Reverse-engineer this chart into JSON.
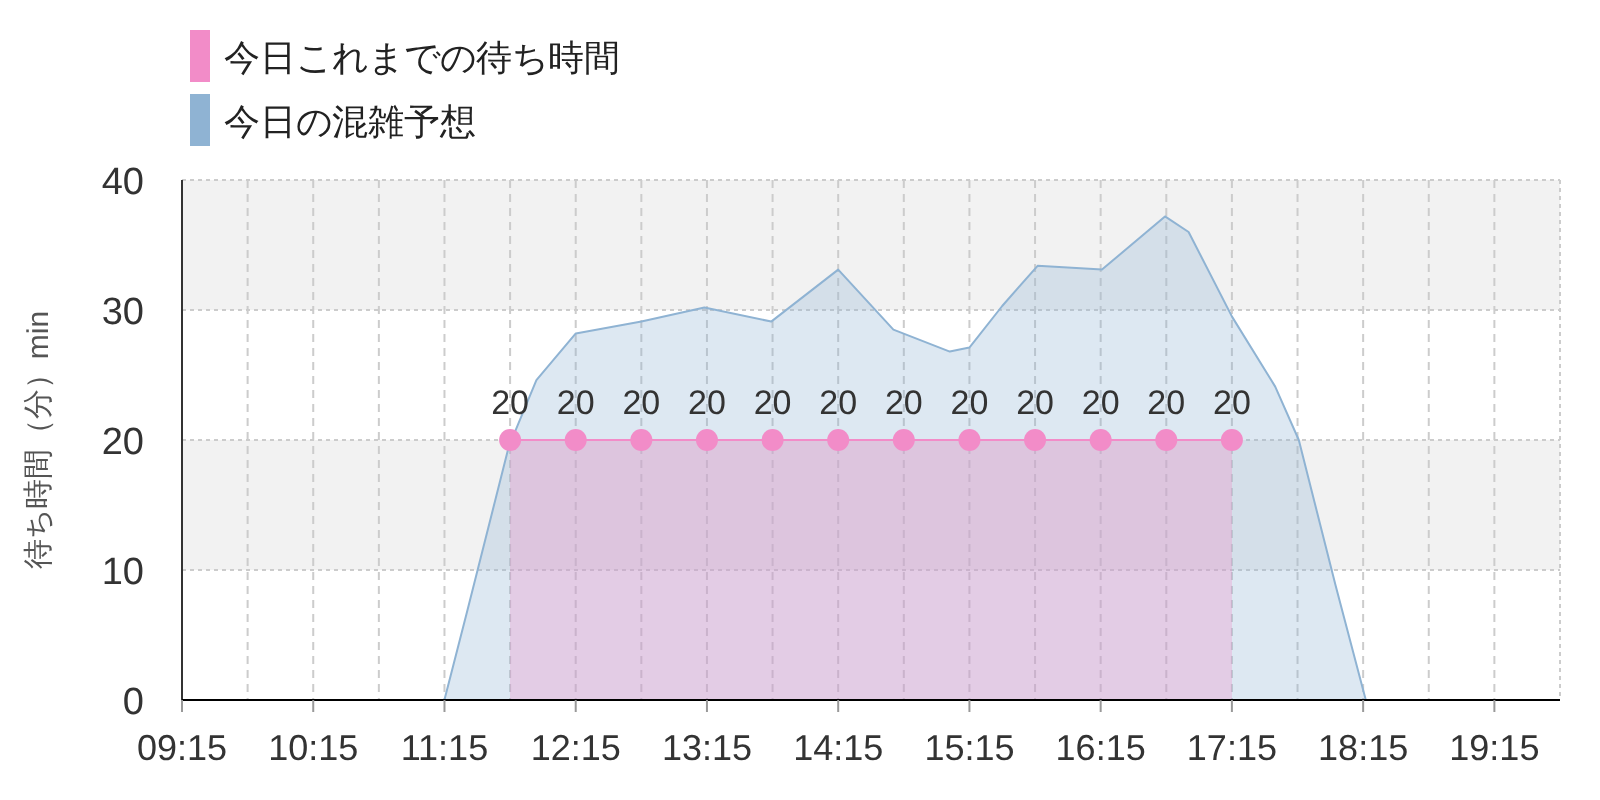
{
  "chart_data": {
    "type": "area",
    "ylabel": "待ち時間（分）min",
    "xlim": [
      9.25,
      19.75
    ],
    "xticks": [
      {
        "value": 9.25,
        "label": "09:15"
      },
      {
        "value": 9.75,
        "label": null
      },
      {
        "value": 10.25,
        "label": "10:15"
      },
      {
        "value": 10.75,
        "label": null
      },
      {
        "value": 11.25,
        "label": "11:15"
      },
      {
        "value": 11.75,
        "label": null
      },
      {
        "value": 12.25,
        "label": "12:15"
      },
      {
        "value": 12.75,
        "label": null
      },
      {
        "value": 13.25,
        "label": "13:15"
      },
      {
        "value": 13.75,
        "label": null
      },
      {
        "value": 14.25,
        "label": "14:15"
      },
      {
        "value": 14.75,
        "label": null
      },
      {
        "value": 15.25,
        "label": "15:15"
      },
      {
        "value": 15.75,
        "label": null
      },
      {
        "value": 16.25,
        "label": "16:15"
      },
      {
        "value": 16.75,
        "label": null
      },
      {
        "value": 17.25,
        "label": "17:15"
      },
      {
        "value": 17.75,
        "label": null
      },
      {
        "value": 18.25,
        "label": "18:15"
      },
      {
        "value": 18.75,
        "label": null
      },
      {
        "value": 19.25,
        "label": "19:15"
      }
    ],
    "ylim": [
      0,
      40
    ],
    "yticks": [
      0,
      10,
      20,
      30,
      40
    ],
    "grid": true,
    "legend": "top left",
    "series": [
      {
        "name": "今日の混雑予想",
        "color": "#8fb3d3",
        "x": [
          9.25,
          10.75,
          11.25,
          11.42,
          11.74,
          11.95,
          12.25,
          12.75,
          13.23,
          13.74,
          14.25,
          14.67,
          15.1,
          15.25,
          15.5,
          15.77,
          16.26,
          16.74,
          16.92,
          17.25,
          17.58,
          17.76,
          18.04,
          18.27,
          18.75,
          19.75
        ],
        "values": [
          0,
          0,
          0,
          6.7,
          19.5,
          24.6,
          28.2,
          29.1,
          30.2,
          29.1,
          33.1,
          28.5,
          26.8,
          27.1,
          30.3,
          33.4,
          33.1,
          37.2,
          36,
          29.5,
          24.1,
          20,
          8.8,
          0,
          0,
          0
        ]
      },
      {
        "name": "今日これまでの待ち時間",
        "color": "#f28cc8",
        "marker": "circle",
        "data_labels": true,
        "x": [
          11.75,
          12.25,
          12.75,
          13.25,
          13.75,
          14.25,
          14.75,
          15.25,
          15.75,
          16.25,
          16.75,
          17.25
        ],
        "values": [
          20,
          20,
          20,
          20,
          20,
          20,
          20,
          20,
          20,
          20,
          20,
          20
        ]
      }
    ]
  }
}
